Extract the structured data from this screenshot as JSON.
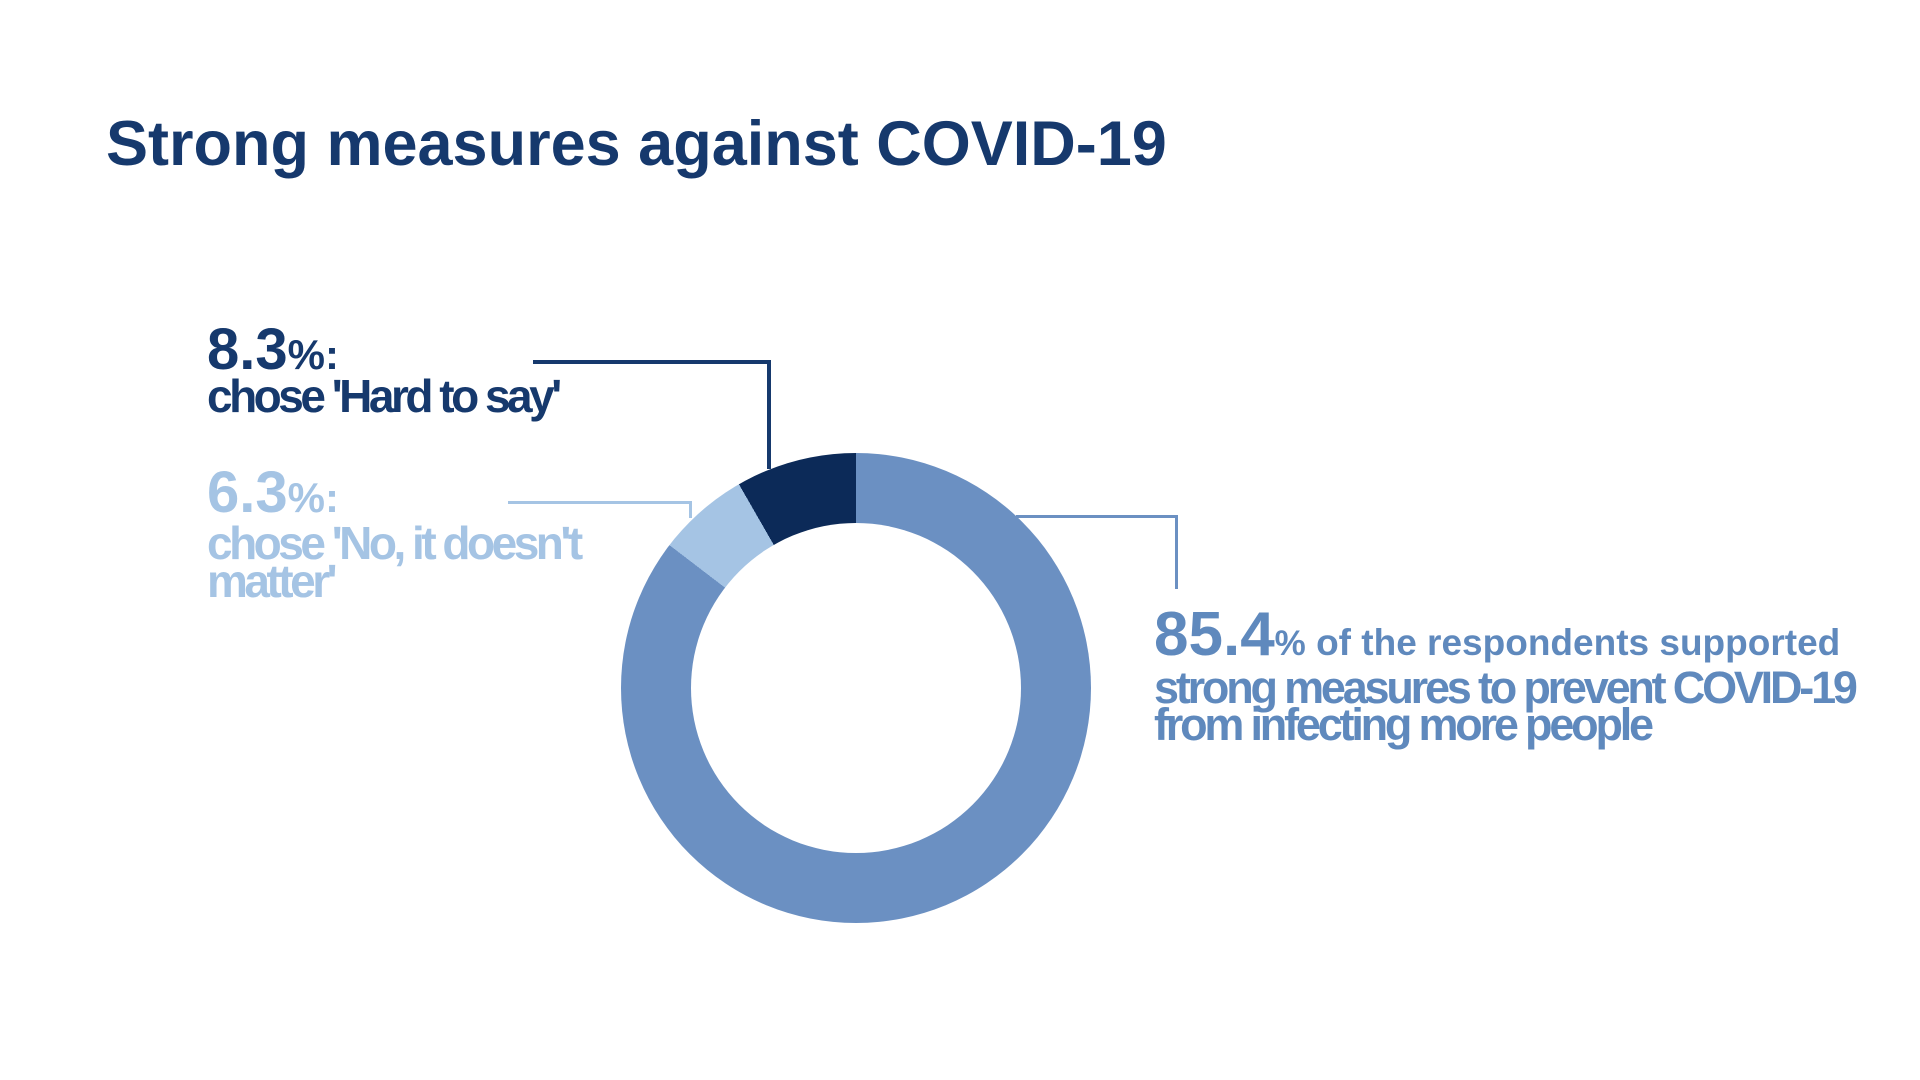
{
  "title": "Strong measures against COVID-19",
  "colors": {
    "navy_text": "#16396d",
    "navy_segment": "#0c2a58",
    "medium_blue_segment": "#6b90c2",
    "medium_blue_text": "#5f89bd",
    "light_blue": "#a5c4e4",
    "background": "#ffffff"
  },
  "chart_data": {
    "type": "pie",
    "subtype": "donut",
    "title": "Strong measures against COVID-19",
    "start_angle_deg": 0,
    "direction": "clockwise",
    "donut_hole_ratio": 0.7,
    "legend_position": "none",
    "series": [
      {
        "label": "Supported strong measures",
        "value": 85.4,
        "color": "#6b90c2"
      },
      {
        "label": "No, it doesn't matter",
        "value": 6.3,
        "color": "#a5c4e4"
      },
      {
        "label": "Hard to say",
        "value": 8.3,
        "color": "#0c2a58"
      }
    ]
  },
  "annotations": {
    "hard_to_say": {
      "value": "8.3",
      "pct": "%:",
      "label": "chose 'Hard to say'"
    },
    "no_matter": {
      "value": "6.3",
      "pct": "%:",
      "label_line1": "chose 'No, it doesn't",
      "label_line2": "matter'",
      "label_full": "chose 'No, it doesn't matter'"
    },
    "supported": {
      "value": "85.4",
      "pct": "%",
      "line1_rest": " of the respondents supported",
      "line2": "strong measures to prevent COVID-19",
      "line3": "from infecting more people",
      "label_full": "85.4% of the respondents supported strong measures to prevent COVID-19 from infecting more people"
    }
  }
}
